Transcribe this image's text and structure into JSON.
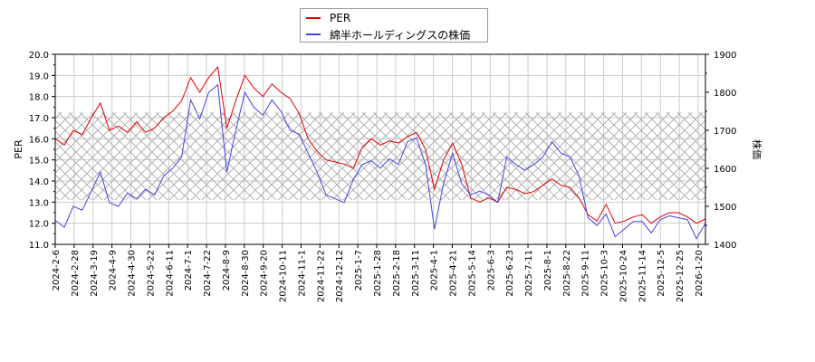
{
  "chart_data": {
    "type": "line",
    "title": "",
    "legend": {
      "position": "top-center",
      "entries": [
        {
          "label": "PER",
          "color": "#e00000"
        },
        {
          "label": "綿半ホールディングスの株価",
          "color": "#4444dd"
        }
      ]
    },
    "xlabel": "",
    "ylabel": "PER",
    "y2label": "株価",
    "ylim": [
      11.0,
      20.0
    ],
    "y2lim": [
      1400,
      1900
    ],
    "yticks": [
      "11.0",
      "12.0",
      "13.0",
      "14.0",
      "15.0",
      "16.0",
      "17.0",
      "18.0",
      "19.0",
      "20.0"
    ],
    "y2ticks": [
      "1400",
      "1500",
      "1600",
      "1700",
      "1800",
      "1900"
    ],
    "grid": true,
    "shaded_band": {
      "ymin": 13.1,
      "ymax": 17.25,
      "pattern": "crosshatch"
    },
    "categories": [
      "2024-2-6",
      "2024-2-28",
      "2024-3-19",
      "2024-4-9",
      "2024-4-30",
      "2024-5-22",
      "2024-6-11",
      "2024-7-1",
      "2024-7-22",
      "2024-8-9",
      "2024-8-30",
      "2024-9-20",
      "2024-10-11",
      "2024-11-1",
      "2024-11-22",
      "2024-12-12",
      "2025-1-7",
      "2025-1-28",
      "2025-2-18",
      "2025-3-11",
      "2025-4-1",
      "2025-4-21",
      "2025-5-14",
      "2025-6-3",
      "2025-6-23",
      "2025-7-11",
      "2025-8-1",
      "2025-8-22",
      "2025-9-11",
      "2025-10-3",
      "2025-10-24",
      "2025-11-14",
      "2025-12-5",
      "2025-12-25",
      "2026-1-20"
    ],
    "series": [
      {
        "name": "PER",
        "axis": "left",
        "color": "#e00000",
        "values": [
          16.0,
          15.7,
          16.4,
          16.2,
          17.0,
          17.7,
          16.4,
          16.6,
          16.3,
          16.8,
          16.3,
          16.5,
          17.0,
          17.3,
          17.8,
          18.9,
          18.2,
          18.9,
          19.4,
          16.5,
          17.8,
          19.0,
          18.4,
          18.0,
          18.6,
          18.2,
          17.9,
          17.2,
          16.0,
          15.4,
          15.0,
          14.9,
          14.8,
          14.6,
          15.6,
          16.0,
          15.7,
          15.9,
          15.8,
          16.1,
          16.3,
          15.5,
          13.6,
          15.0,
          15.8,
          14.8,
          13.2,
          13.0,
          13.2,
          13.0,
          13.7,
          13.6,
          13.4,
          13.5,
          13.8,
          14.1,
          13.8,
          13.7,
          13.2,
          12.4,
          12.1,
          12.9,
          12.0,
          12.1,
          12.3,
          12.4,
          12.0,
          12.3,
          12.5,
          12.5,
          12.3,
          12.0,
          12.2
        ]
      },
      {
        "name": "綿半ホールディングスの株価",
        "axis": "right",
        "color": "#4444dd",
        "values": [
          1463,
          1445,
          1500,
          1490,
          1540,
          1590,
          1510,
          1500,
          1535,
          1520,
          1545,
          1530,
          1580,
          1600,
          1630,
          1780,
          1730,
          1800,
          1820,
          1590,
          1700,
          1800,
          1760,
          1740,
          1780,
          1750,
          1700,
          1690,
          1640,
          1590,
          1530,
          1520,
          1510,
          1570,
          1610,
          1620,
          1600,
          1625,
          1610,
          1670,
          1680,
          1610,
          1440,
          1560,
          1640,
          1560,
          1530,
          1540,
          1530,
          1510,
          1630,
          1610,
          1595,
          1610,
          1630,
          1670,
          1640,
          1630,
          1580,
          1470,
          1450,
          1480,
          1420,
          1440,
          1460,
          1460,
          1430,
          1465,
          1475,
          1470,
          1465,
          1415,
          1455
        ]
      }
    ]
  },
  "legend_labels": {
    "per": "PER",
    "price": "綿半ホールディングスの株価"
  },
  "axes": {
    "left_title": "PER",
    "right_title": "株価"
  }
}
